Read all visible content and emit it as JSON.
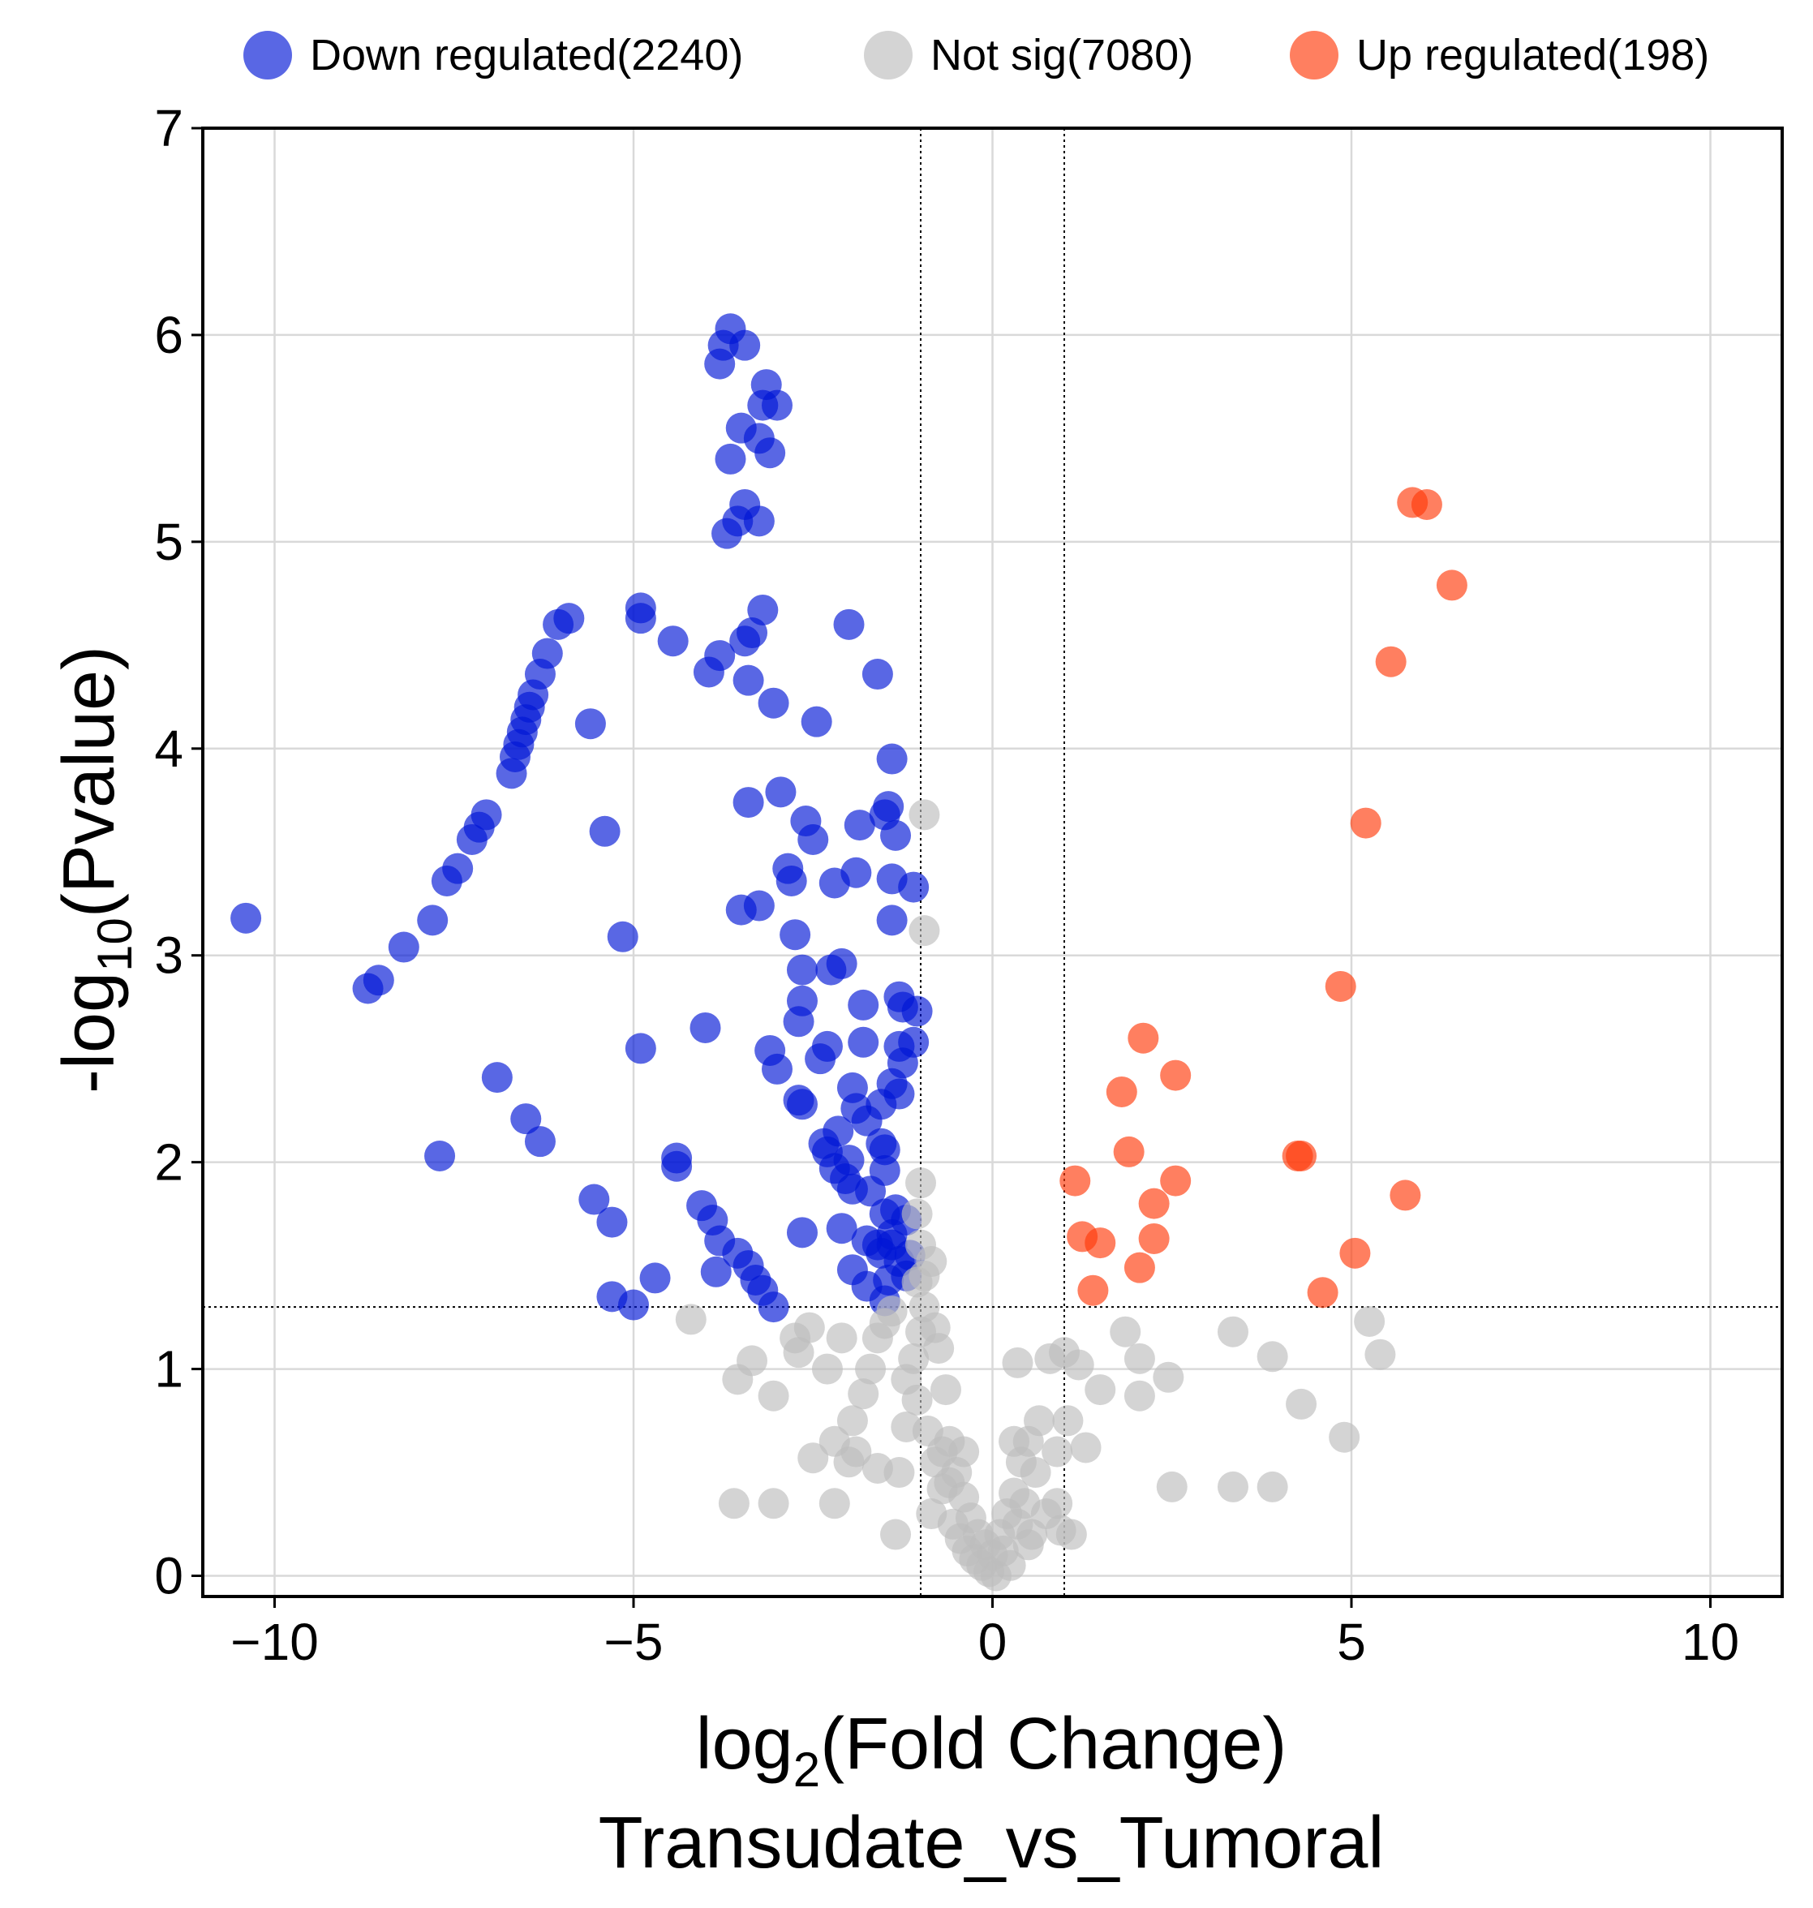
{
  "chart_data": {
    "type": "scatter",
    "title": "",
    "xlabel_prefix": "log",
    "xlabel_sub": "2",
    "xlabel_suffix": "(Fold Change)",
    "xlabel_line2": "Transudate_vs_Tumoral",
    "ylabel_prefix": "-log",
    "ylabel_sub": "10",
    "ylabel_suffix": "(Pvalue)",
    "xlim": [
      -11,
      11
    ],
    "ylim": [
      -0.1,
      7
    ],
    "xticks": [
      -10,
      -5,
      0,
      5,
      10
    ],
    "xtick_labels": [
      "−10",
      "−5",
      "0",
      "5",
      "10"
    ],
    "yticks": [
      0,
      1,
      2,
      3,
      4,
      5,
      6,
      7
    ],
    "ytick_labels": [
      "0",
      "1",
      "2",
      "3",
      "4",
      "5",
      "6",
      "7"
    ],
    "grid": true,
    "legend_position": "top",
    "thresholds": {
      "fold_change": [
        -1,
        1
      ],
      "neg_log10_p": 1.3
    },
    "series": [
      {
        "name": "Down regulated(2240)",
        "color": "#0015d6",
        "points": [
          [
            -10.4,
            3.18
          ],
          [
            -8.7,
            2.84
          ],
          [
            -8.55,
            2.88
          ],
          [
            -8.2,
            3.04
          ],
          [
            -7.8,
            3.17
          ],
          [
            -7.6,
            3.36
          ],
          [
            -7.45,
            3.42
          ],
          [
            -7.25,
            3.56
          ],
          [
            -7.15,
            3.62
          ],
          [
            -7.05,
            3.68
          ],
          [
            -6.7,
            3.88
          ],
          [
            -6.65,
            3.96
          ],
          [
            -6.6,
            4.02
          ],
          [
            -6.55,
            4.08
          ],
          [
            -6.5,
            4.14
          ],
          [
            -6.45,
            4.2
          ],
          [
            -6.4,
            4.26
          ],
          [
            -6.3,
            4.36
          ],
          [
            -6.2,
            4.46
          ],
          [
            -6.05,
            4.6
          ],
          [
            -5.9,
            4.63
          ],
          [
            -5.6,
            4.12
          ],
          [
            -5.4,
            3.6
          ],
          [
            -5.15,
            3.09
          ],
          [
            -4.9,
            2.55
          ],
          [
            -4.9,
            4.68
          ],
          [
            -4.9,
            4.63
          ],
          [
            -4.45,
            4.52
          ],
          [
            -4.4,
            2.02
          ],
          [
            -4.4,
            1.98
          ],
          [
            -4.7,
            1.44
          ],
          [
            -5.3,
            1.35
          ],
          [
            -5.0,
            1.31
          ],
          [
            -5.55,
            1.82
          ],
          [
            -5.3,
            1.71
          ],
          [
            -6.3,
            2.1
          ],
          [
            -6.5,
            2.21
          ],
          [
            -6.9,
            2.41
          ],
          [
            -7.7,
            2.03
          ],
          [
            -4.0,
            2.65
          ],
          [
            -3.95,
            4.37
          ],
          [
            -3.8,
            4.45
          ],
          [
            -3.85,
            1.47
          ],
          [
            -4.05,
            1.79
          ],
          [
            -3.9,
            1.72
          ],
          [
            -3.8,
            1.62
          ],
          [
            -3.55,
            1.56
          ],
          [
            -3.4,
            1.5
          ],
          [
            -3.3,
            1.43
          ],
          [
            -3.2,
            1.38
          ],
          [
            -3.05,
            1.3
          ],
          [
            -3.8,
            5.86
          ],
          [
            -3.75,
            5.95
          ],
          [
            -3.65,
            6.03
          ],
          [
            -3.45,
            5.95
          ],
          [
            -3.5,
            5.55
          ],
          [
            -3.65,
            5.4
          ],
          [
            -3.25,
            5.5
          ],
          [
            -3.15,
            5.76
          ],
          [
            -3.1,
            5.43
          ],
          [
            -3.0,
            5.66
          ],
          [
            -3.2,
            5.66
          ],
          [
            -3.45,
            5.18
          ],
          [
            -3.55,
            5.1
          ],
          [
            -3.7,
            5.04
          ],
          [
            -3.25,
            5.1
          ],
          [
            -3.2,
            4.67
          ],
          [
            -3.35,
            4.56
          ],
          [
            -3.45,
            4.52
          ],
          [
            -3.4,
            4.33
          ],
          [
            -3.05,
            4.22
          ],
          [
            -3.4,
            3.74
          ],
          [
            -2.95,
            3.79
          ],
          [
            -3.5,
            3.22
          ],
          [
            -3.25,
            3.24
          ],
          [
            -2.85,
            3.42
          ],
          [
            -2.8,
            3.36
          ],
          [
            -2.75,
            3.1
          ],
          [
            -2.65,
            2.93
          ],
          [
            -2.65,
            2.78
          ],
          [
            -2.7,
            2.68
          ],
          [
            -3.1,
            2.54
          ],
          [
            -3.0,
            2.45
          ],
          [
            -2.6,
            3.65
          ],
          [
            -2.5,
            3.56
          ],
          [
            -2.45,
            4.13
          ],
          [
            -2.2,
            3.35
          ],
          [
            -2.25,
            2.93
          ],
          [
            -2.1,
            2.96
          ],
          [
            -2.3,
            2.56
          ],
          [
            -2.4,
            2.5
          ],
          [
            -2.7,
            2.3
          ],
          [
            -2.65,
            2.28
          ],
          [
            -2.65,
            1.66
          ],
          [
            -2.0,
            4.6
          ],
          [
            -1.6,
            4.36
          ],
          [
            -1.4,
            3.95
          ],
          [
            -1.45,
            3.72
          ],
          [
            -1.5,
            3.68
          ],
          [
            -1.85,
            3.63
          ],
          [
            -1.35,
            3.58
          ],
          [
            -1.9,
            3.4
          ],
          [
            -1.4,
            3.37
          ],
          [
            -1.1,
            3.33
          ],
          [
            -1.4,
            3.17
          ],
          [
            -1.3,
            2.8
          ],
          [
            -1.25,
            2.75
          ],
          [
            -1.05,
            2.73
          ],
          [
            -1.8,
            2.76
          ],
          [
            -1.8,
            2.58
          ],
          [
            -1.3,
            2.56
          ],
          [
            -1.1,
            2.58
          ],
          [
            -1.25,
            2.48
          ],
          [
            -1.4,
            2.38
          ],
          [
            -1.3,
            2.33
          ],
          [
            -1.55,
            2.28
          ],
          [
            -1.95,
            2.36
          ],
          [
            -1.9,
            2.26
          ],
          [
            -1.75,
            2.2
          ],
          [
            -2.15,
            2.15
          ],
          [
            -2.35,
            2.09
          ],
          [
            -2.3,
            2.05
          ],
          [
            -2.0,
            2.01
          ],
          [
            -1.55,
            2.09
          ],
          [
            -1.5,
            2.06
          ],
          [
            -1.5,
            1.96
          ],
          [
            -2.2,
            1.97
          ],
          [
            -2.05,
            1.92
          ],
          [
            -1.95,
            1.87
          ],
          [
            -1.7,
            1.86
          ],
          [
            -1.5,
            1.75
          ],
          [
            -1.35,
            1.77
          ],
          [
            -1.2,
            1.72
          ],
          [
            -1.4,
            1.65
          ],
          [
            -2.1,
            1.68
          ],
          [
            -1.75,
            1.62
          ],
          [
            -1.55,
            1.56
          ],
          [
            -1.3,
            1.52
          ],
          [
            -1.15,
            1.55
          ],
          [
            -1.95,
            1.48
          ],
          [
            -1.75,
            1.4
          ],
          [
            -1.5,
            1.33
          ],
          [
            -1.2,
            1.45
          ],
          [
            -1.45,
            1.43
          ],
          [
            -1.6,
            1.6
          ],
          [
            -1.4,
            1.6
          ]
        ]
      },
      {
        "name": "Not sig(7080)",
        "color": "#bdbdbd",
        "points": [
          [
            -4.2,
            1.24
          ],
          [
            -3.55,
            0.95
          ],
          [
            -3.35,
            1.04
          ],
          [
            -3.05,
            0.87
          ],
          [
            -3.6,
            0.35
          ],
          [
            -3.05,
            0.35
          ],
          [
            -2.75,
            1.15
          ],
          [
            -2.7,
            1.08
          ],
          [
            -2.55,
            1.2
          ],
          [
            -2.3,
            1.0
          ],
          [
            -2.1,
            1.15
          ],
          [
            -2.5,
            0.57
          ],
          [
            -2.2,
            0.65
          ],
          [
            -2.2,
            0.35
          ],
          [
            -1.95,
            0.75
          ],
          [
            -1.9,
            0.6
          ],
          [
            -1.8,
            0.88
          ],
          [
            -1.7,
            1.0
          ],
          [
            -1.6,
            1.15
          ],
          [
            -1.5,
            1.22
          ],
          [
            -1.4,
            1.28
          ],
          [
            -1.3,
            0.5
          ],
          [
            -1.2,
            0.95
          ],
          [
            -1.1,
            1.05
          ],
          [
            -1.05,
            0.85
          ],
          [
            -1.0,
            1.18
          ],
          [
            -0.95,
            1.3
          ],
          [
            -0.9,
            0.7
          ],
          [
            -0.85,
            0.3
          ],
          [
            -0.8,
            0.55
          ],
          [
            -0.75,
            1.1
          ],
          [
            -0.7,
            0.42
          ],
          [
            -0.65,
            0.9
          ],
          [
            -0.6,
            0.65
          ],
          [
            -0.55,
            0.25
          ],
          [
            -0.5,
            0.5
          ],
          [
            -0.45,
            0.18
          ],
          [
            -0.4,
            0.38
          ],
          [
            -0.35,
            0.12
          ],
          [
            -0.3,
            0.28
          ],
          [
            -0.25,
            0.08
          ],
          [
            -0.2,
            0.2
          ],
          [
            -0.15,
            0.05
          ],
          [
            -0.1,
            0.15
          ],
          [
            -0.05,
            0.02
          ],
          [
            0.0,
            0.1
          ],
          [
            0.05,
            0.0
          ],
          [
            0.1,
            0.2
          ],
          [
            0.15,
            0.12
          ],
          [
            0.2,
            0.3
          ],
          [
            0.25,
            0.05
          ],
          [
            0.3,
            0.4
          ],
          [
            0.35,
            0.25
          ],
          [
            0.4,
            0.55
          ],
          [
            0.45,
            0.35
          ],
          [
            0.5,
            0.65
          ],
          [
            0.55,
            0.2
          ],
          [
            0.6,
            0.5
          ],
          [
            0.65,
            0.75
          ],
          [
            0.75,
            0.3
          ],
          [
            0.8,
            1.05
          ],
          [
            0.9,
            0.6
          ],
          [
            0.95,
            0.22
          ],
          [
            1.0,
            1.08
          ],
          [
            1.05,
            0.75
          ],
          [
            1.2,
            1.02
          ],
          [
            1.3,
            0.62
          ],
          [
            1.5,
            0.9
          ],
          [
            1.85,
            1.18
          ],
          [
            2.05,
            1.05
          ],
          [
            2.05,
            0.87
          ],
          [
            2.45,
            0.96
          ],
          [
            2.5,
            0.43
          ],
          [
            3.35,
            1.18
          ],
          [
            3.35,
            0.43
          ],
          [
            3.9,
            1.06
          ],
          [
            3.9,
            0.43
          ],
          [
            4.3,
            0.83
          ],
          [
            4.9,
            0.67
          ],
          [
            5.25,
            1.23
          ],
          [
            5.4,
            1.07
          ],
          [
            0.35,
            1.03
          ],
          [
            -1.0,
            1.9
          ],
          [
            -1.05,
            1.75
          ],
          [
            -1.0,
            1.6
          ],
          [
            -0.85,
            1.52
          ],
          [
            -0.95,
            1.45
          ],
          [
            -0.95,
            3.68
          ],
          [
            -0.95,
            3.12
          ],
          [
            -1.05,
            1.42
          ],
          [
            -0.8,
            1.2
          ],
          [
            -1.2,
            0.72
          ],
          [
            -0.7,
            0.6
          ],
          [
            -0.6,
            0.45
          ],
          [
            -1.6,
            0.52
          ],
          [
            -2.0,
            0.55
          ],
          [
            -1.35,
            0.2
          ],
          [
            -0.4,
            0.6
          ],
          [
            0.3,
            0.65
          ],
          [
            0.5,
            0.15
          ],
          [
            0.9,
            0.35
          ],
          [
            1.1,
            0.2
          ]
        ]
      },
      {
        "name": "Up regulated(198)",
        "color": "#ff3b0a",
        "points": [
          [
            5.85,
            5.19
          ],
          [
            6.05,
            5.18
          ],
          [
            6.4,
            4.79
          ],
          [
            5.55,
            4.42
          ],
          [
            5.2,
            3.64
          ],
          [
            4.85,
            2.85
          ],
          [
            4.3,
            2.03
          ],
          [
            4.25,
            2.03
          ],
          [
            5.75,
            1.84
          ],
          [
            5.05,
            1.56
          ],
          [
            4.6,
            1.37
          ],
          [
            2.1,
            2.6
          ],
          [
            2.55,
            2.42
          ],
          [
            1.8,
            2.34
          ],
          [
            1.9,
            2.05
          ],
          [
            2.55,
            1.91
          ],
          [
            1.15,
            1.91
          ],
          [
            2.25,
            1.8
          ],
          [
            1.25,
            1.64
          ],
          [
            1.5,
            1.61
          ],
          [
            2.25,
            1.63
          ],
          [
            2.05,
            1.49
          ],
          [
            1.4,
            1.38
          ]
        ]
      }
    ]
  }
}
